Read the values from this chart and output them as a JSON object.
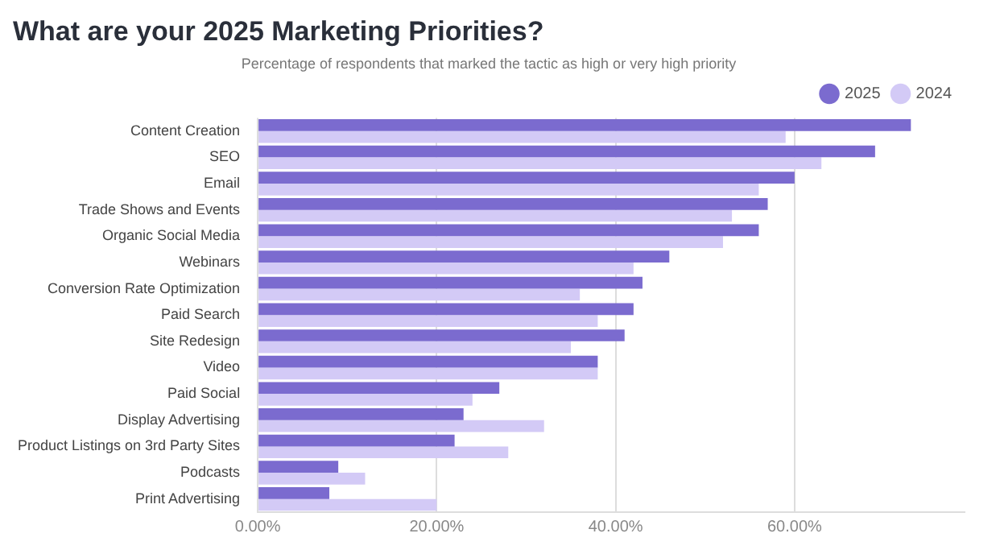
{
  "chart_data": {
    "type": "bar",
    "orientation": "horizontal",
    "title": "What are your 2025 Marketing Priorities?",
    "subtitle": "Percentage of respondents that marked the tactic as high or very high priority",
    "categories": [
      "Content Creation",
      "SEO",
      "Email",
      "Trade Shows and Events",
      "Organic Social Media",
      "Webinars",
      "Conversion Rate Optimization",
      "Paid Search",
      "Site Redesign",
      "Video",
      "Paid Social",
      "Display Advertising",
      "Product Listings on 3rd Party Sites",
      "Podcasts",
      "Print Advertising"
    ],
    "series": [
      {
        "name": "2025",
        "color": "#7b6bcf",
        "values": [
          73,
          69,
          60,
          57,
          56,
          46,
          43,
          42,
          41,
          38,
          27,
          23,
          22,
          9,
          8
        ]
      },
      {
        "name": "2024",
        "color": "#d3caf6",
        "values": [
          59,
          63,
          56,
          53,
          52,
          42,
          36,
          38,
          35,
          38,
          24,
          32,
          28,
          12,
          20
        ]
      }
    ],
    "xlim": [
      0,
      79
    ],
    "xticks": [
      {
        "value": 0,
        "label": "0.00%"
      },
      {
        "value": 20,
        "label": "20.00%"
      },
      {
        "value": 40,
        "label": "40.00%"
      },
      {
        "value": 60,
        "label": "60.00%"
      }
    ],
    "grid": "x",
    "legend": "top right"
  }
}
